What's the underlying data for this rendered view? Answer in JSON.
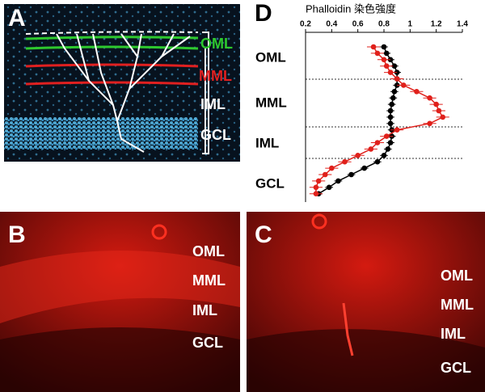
{
  "panels": [
    {
      "letter": "A",
      "labels": [
        "OML",
        "MML",
        "IML",
        "GCL"
      ]
    },
    {
      "letter": "B",
      "labels": [
        "OML",
        "MML",
        "IML",
        "GCL"
      ]
    },
    {
      "letter": "C",
      "labels": [
        "OML",
        "MML",
        "IML",
        "GCL"
      ]
    },
    {
      "letter": "D"
    }
  ],
  "chart_data": {
    "type": "line",
    "title": "Phalloidin 染色強度",
    "xlim": [
      0.2,
      1.4
    ],
    "xticks": [
      0.2,
      0.4,
      0.6,
      0.8,
      1,
      1.2,
      1.4
    ],
    "region_labels": [
      "OML",
      "MML",
      "IML",
      "GCL"
    ],
    "categories": [
      null,
      null,
      null,
      null,
      null,
      null,
      null,
      null,
      null,
      null,
      null,
      null,
      null,
      null,
      null,
      null,
      null,
      null,
      null,
      null,
      null,
      null,
      null,
      null
    ],
    "series": [
      {
        "color": "#000000",
        "values": [
          0.8,
          0.82,
          0.85,
          0.88,
          0.9,
          0.9,
          0.9,
          0.88,
          0.87,
          0.86,
          0.85,
          0.85,
          0.85,
          0.86,
          0.86,
          0.85,
          0.83,
          0.8,
          0.75,
          0.65,
          0.55,
          0.45,
          0.38,
          0.3
        ],
        "errors": [
          0.03,
          0.03,
          0.03,
          0.03,
          0.03,
          0.03,
          0.03,
          0.03,
          0.03,
          0.03,
          0.03,
          0.03,
          0.03,
          0.03,
          0.03,
          0.03,
          0.03,
          0.03,
          0.03,
          0.03,
          0.03,
          0.03,
          0.03,
          0.03
        ]
      },
      {
        "color": "#e0201b",
        "values": [
          0.72,
          0.75,
          0.8,
          0.82,
          0.85,
          0.9,
          0.95,
          1.05,
          1.15,
          1.2,
          1.22,
          1.25,
          1.15,
          0.9,
          0.82,
          0.75,
          0.7,
          0.6,
          0.5,
          0.4,
          0.35,
          0.3,
          0.28,
          0.28
        ],
        "errors": [
          0.05,
          0.05,
          0.05,
          0.05,
          0.05,
          0.05,
          0.05,
          0.05,
          0.05,
          0.05,
          0.05,
          0.05,
          0.05,
          0.05,
          0.05,
          0.05,
          0.05,
          0.05,
          0.05,
          0.05,
          0.05,
          0.05,
          0.05,
          0.05
        ]
      }
    ]
  }
}
